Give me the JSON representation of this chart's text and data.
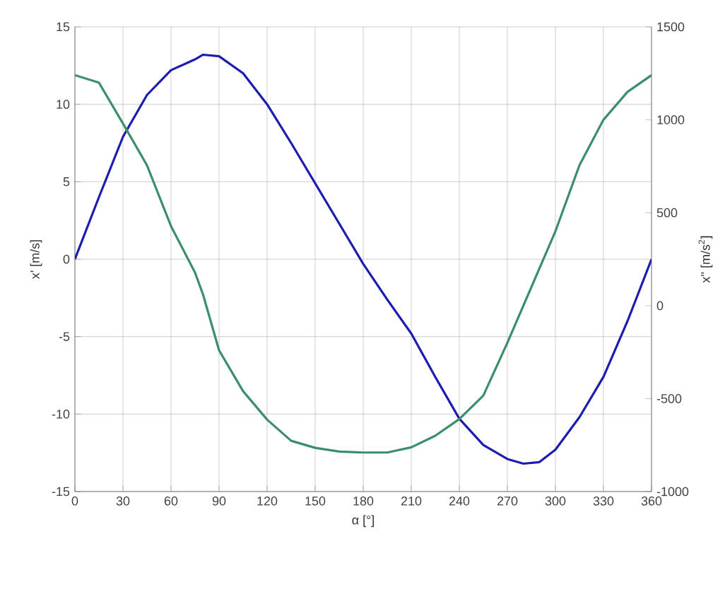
{
  "chart_data": {
    "type": "line",
    "xlabel": "α [°]",
    "ylabel": "x' [m/s]",
    "y2label": "x'' [m/s$^{2}$]",
    "x": [
      0,
      15,
      30,
      45,
      60,
      75,
      80,
      90,
      105,
      120,
      135,
      150,
      165,
      180,
      195,
      210,
      225,
      240,
      255,
      270,
      280,
      290,
      300,
      315,
      330,
      345,
      360
    ],
    "series": [
      {
        "color": "#1c1cb0",
        "values": [
          0,
          4.0,
          7.9,
          10.6,
          12.2,
          12.9,
          13.2,
          13.1,
          12.0,
          10.0,
          7.5,
          4.9,
          2.3,
          -0.3,
          -2.6,
          -4.8,
          -7.6,
          -10.3,
          -12.0,
          -12.9,
          -13.2,
          -13.1,
          -12.3,
          -10.2,
          -7.6,
          -4.0,
          0
        ]
      },
      {
        "color": "#3a8f6a",
        "axis": "y2",
        "values": [
          1240,
          1200,
          980,
          755,
          428,
          178,
          60,
          -240,
          -460,
          -613,
          -727,
          -765,
          -785,
          -790,
          -790,
          -762,
          -700,
          -610,
          -484,
          -200,
          0,
          200,
          400,
          755,
          1000,
          1150,
          1240
        ]
      }
    ],
    "xlim": [
      0,
      360
    ],
    "xticks": [
      0,
      30,
      60,
      90,
      120,
      150,
      180,
      210,
      240,
      270,
      300,
      330,
      360
    ],
    "ylim": [
      -15,
      15
    ],
    "yticks": [
      -15,
      -10,
      -5,
      0,
      5,
      10,
      15
    ],
    "y2lim": [
      -1000,
      1500
    ],
    "y2ticks": [
      -1000,
      -500,
      0,
      500,
      1000,
      1500
    ],
    "grid": true,
    "legend": false,
    "marker": "none",
    "line_style": "solid"
  }
}
